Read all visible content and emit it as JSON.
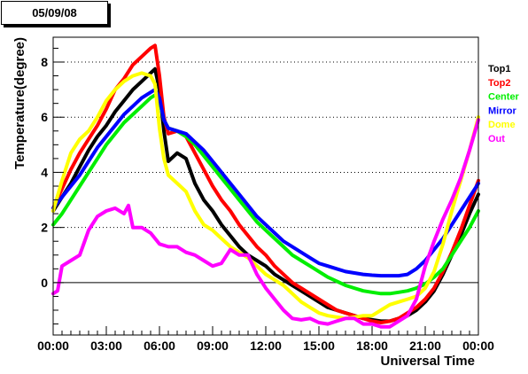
{
  "date_label": "05/09/08",
  "chart_data": {
    "type": "line",
    "xlabel": "Universal Time",
    "ylabel": "Temperature(degree)",
    "x_tick_labels": [
      "00:00",
      "03:00",
      "06:00",
      "09:00",
      "12:00",
      "15:00",
      "18:00",
      "21:00",
      "00:00"
    ],
    "x_ticks_hours": [
      0,
      3,
      6,
      9,
      12,
      15,
      18,
      21,
      24
    ],
    "y_ticks": [
      0,
      2,
      4,
      6,
      8
    ],
    "xlim": [
      0,
      24
    ],
    "ylim": [
      -1.9,
      8.9
    ],
    "grid": "horizontal dotted at major y ticks",
    "legend_placement": "right",
    "series": [
      {
        "name": "Top1",
        "color": "#000000",
        "x": [
          0,
          0.5,
          1,
          1.5,
          2,
          2.5,
          3,
          3.5,
          4,
          4.5,
          5,
          5.5,
          5.75,
          6,
          6.25,
          6.5,
          7,
          7.5,
          8,
          8.5,
          9,
          9.5,
          10,
          10.5,
          11,
          11.5,
          12,
          12.5,
          13,
          13.5,
          14,
          14.5,
          15,
          15.5,
          16,
          16.5,
          17,
          17.5,
          18,
          18.5,
          19,
          19.5,
          20,
          20.5,
          21,
          21.5,
          22,
          22.5,
          23,
          23.5,
          24
        ],
        "y": [
          2.6,
          3.1,
          3.6,
          4.2,
          4.8,
          5.3,
          5.7,
          6.2,
          6.6,
          7.0,
          7.3,
          7.6,
          7.75,
          7.0,
          5.5,
          4.4,
          4.7,
          4.5,
          3.6,
          3.0,
          2.6,
          2.1,
          1.7,
          1.3,
          1.0,
          0.8,
          0.6,
          0.3,
          0.1,
          -0.1,
          -0.3,
          -0.5,
          -0.7,
          -0.9,
          -1.0,
          -1.1,
          -1.2,
          -1.3,
          -1.35,
          -1.4,
          -1.4,
          -1.3,
          -1.2,
          -1.0,
          -0.7,
          -0.3,
          0.3,
          1.0,
          1.7,
          2.5,
          3.2
        ]
      },
      {
        "name": "Top2",
        "color": "#ff0000",
        "x": [
          0,
          0.5,
          1,
          1.5,
          2,
          2.5,
          3,
          3.5,
          4,
          4.5,
          5,
          5.5,
          5.75,
          6,
          6.25,
          6.5,
          7,
          7.5,
          8,
          8.5,
          9,
          9.5,
          10,
          10.5,
          11,
          11.5,
          12,
          12.5,
          13,
          13.5,
          14,
          14.5,
          15,
          15.5,
          16,
          16.5,
          17,
          17.5,
          18,
          18.5,
          19,
          19.5,
          20,
          20.5,
          21,
          21.5,
          22,
          22.5,
          23,
          23.5,
          24
        ],
        "y": [
          2.7,
          3.4,
          4.1,
          4.7,
          5.2,
          5.7,
          6.3,
          7.0,
          7.4,
          7.9,
          8.2,
          8.5,
          8.6,
          7.5,
          6.0,
          5.4,
          5.5,
          5.3,
          4.7,
          4.1,
          3.5,
          3.0,
          2.6,
          2.1,
          1.7,
          1.3,
          1.0,
          0.6,
          0.3,
          0.0,
          -0.2,
          -0.4,
          -0.6,
          -0.8,
          -1.0,
          -1.1,
          -1.2,
          -1.3,
          -1.4,
          -1.45,
          -1.4,
          -1.3,
          -1.1,
          -0.9,
          -0.6,
          -0.2,
          0.4,
          1.1,
          1.9,
          2.8,
          3.7
        ]
      },
      {
        "name": "Center",
        "color": "#00ee00",
        "x": [
          0,
          0.5,
          1,
          1.5,
          2,
          2.5,
          3,
          3.5,
          4,
          4.5,
          5,
          5.5,
          5.75,
          6,
          6.25,
          6.5,
          7,
          7.5,
          8,
          8.5,
          9,
          9.5,
          10,
          10.5,
          11,
          11.5,
          12,
          12.5,
          13,
          13.5,
          14,
          14.5,
          15,
          15.5,
          16,
          16.5,
          17,
          17.5,
          18,
          18.5,
          19,
          19.5,
          20,
          20.5,
          21,
          21.5,
          22,
          22.5,
          23,
          23.5,
          24
        ],
        "y": [
          2.1,
          2.5,
          3.0,
          3.5,
          4.0,
          4.5,
          5.0,
          5.4,
          5.8,
          6.1,
          6.4,
          6.7,
          6.8,
          6.6,
          5.9,
          5.6,
          5.5,
          5.3,
          5.0,
          4.6,
          4.2,
          3.8,
          3.4,
          3.0,
          2.6,
          2.2,
          1.9,
          1.6,
          1.3,
          1.0,
          0.8,
          0.6,
          0.4,
          0.2,
          0.05,
          -0.1,
          -0.2,
          -0.3,
          -0.35,
          -0.4,
          -0.4,
          -0.35,
          -0.3,
          -0.2,
          -0.05,
          0.2,
          0.5,
          1.0,
          1.5,
          2.0,
          2.6
        ]
      },
      {
        "name": "Mirror",
        "color": "#0000ff",
        "x": [
          0,
          0.5,
          1,
          1.5,
          2,
          2.5,
          3,
          3.5,
          4,
          4.5,
          5,
          5.5,
          5.75,
          6,
          6.25,
          6.5,
          7,
          7.5,
          8,
          8.5,
          9,
          9.5,
          10,
          10.5,
          11,
          11.5,
          12,
          12.5,
          13,
          13.5,
          14,
          14.5,
          15,
          15.5,
          16,
          16.5,
          17,
          17.5,
          18,
          18.5,
          19,
          19.5,
          20,
          20.5,
          21,
          21.5,
          22,
          22.5,
          23,
          23.5,
          24
        ],
        "y": [
          2.7,
          3.1,
          3.5,
          3.9,
          4.4,
          4.9,
          5.3,
          5.7,
          6.1,
          6.4,
          6.7,
          6.9,
          7.0,
          6.7,
          5.9,
          5.6,
          5.5,
          5.4,
          5.1,
          4.8,
          4.4,
          4.0,
          3.6,
          3.2,
          2.8,
          2.4,
          2.1,
          1.8,
          1.5,
          1.3,
          1.1,
          0.9,
          0.7,
          0.6,
          0.5,
          0.4,
          0.35,
          0.3,
          0.27,
          0.25,
          0.25,
          0.25,
          0.3,
          0.5,
          0.8,
          1.2,
          1.6,
          2.1,
          2.6,
          3.1,
          3.6
        ]
      },
      {
        "name": "Dome",
        "color": "#ffff00",
        "x": [
          0,
          0.5,
          1,
          1.5,
          2,
          2.5,
          3,
          3.5,
          4,
          4.5,
          5,
          5.5,
          5.75,
          6,
          6.25,
          6.5,
          7,
          7.5,
          8,
          8.5,
          9,
          9.5,
          10,
          10.5,
          11,
          11.5,
          12,
          12.5,
          13,
          13.5,
          14,
          14.5,
          15,
          15.5,
          16,
          16.5,
          17,
          17.5,
          18,
          18.5,
          19,
          19.5,
          20,
          20.5,
          21,
          21.5,
          22,
          22.5,
          23,
          23.5,
          24
        ],
        "y": [
          2.6,
          3.7,
          4.7,
          5.2,
          5.5,
          6.0,
          6.6,
          7.0,
          7.3,
          7.5,
          7.6,
          7.5,
          7.2,
          5.6,
          4.5,
          3.9,
          3.6,
          3.3,
          2.6,
          2.1,
          1.9,
          1.6,
          1.3,
          1.1,
          0.9,
          0.6,
          0.3,
          0.1,
          -0.1,
          -0.4,
          -0.7,
          -0.9,
          -1.1,
          -1.2,
          -1.25,
          -1.3,
          -1.25,
          -1.2,
          -1.2,
          -1.0,
          -0.8,
          -0.7,
          -0.6,
          -0.5,
          -0.2,
          0.4,
          1.4,
          2.6,
          3.7,
          4.8,
          6.0
        ]
      },
      {
        "name": "Out",
        "color": "#ff00ff",
        "x": [
          0,
          0.25,
          0.5,
          1,
          1.5,
          2,
          2.5,
          3,
          3.5,
          4,
          4.25,
          4.5,
          5,
          5.5,
          6,
          6.5,
          7,
          7.5,
          8,
          8.5,
          9,
          9.5,
          10,
          10.5,
          11,
          11.5,
          12,
          12.5,
          13,
          13.5,
          14,
          14.5,
          15,
          15.5,
          16,
          16.5,
          17,
          17.5,
          18,
          18.5,
          19,
          19.5,
          20,
          20.5,
          21,
          21.5,
          22,
          22.5,
          23,
          23.5,
          24
        ],
        "y": [
          -0.4,
          -0.3,
          0.6,
          0.8,
          1.0,
          1.9,
          2.4,
          2.6,
          2.7,
          2.5,
          2.8,
          2.0,
          2.0,
          1.8,
          1.4,
          1.3,
          1.3,
          1.1,
          1.0,
          0.8,
          0.6,
          0.7,
          1.2,
          1.0,
          1.0,
          0.3,
          -0.2,
          -0.6,
          -1.0,
          -1.3,
          -1.35,
          -1.3,
          -1.45,
          -1.5,
          -1.4,
          -1.3,
          -1.3,
          -1.5,
          -1.5,
          -1.6,
          -1.6,
          -1.4,
          -1.2,
          -0.6,
          0.6,
          1.5,
          2.3,
          3.0,
          3.8,
          4.8,
          5.9
        ]
      }
    ]
  }
}
